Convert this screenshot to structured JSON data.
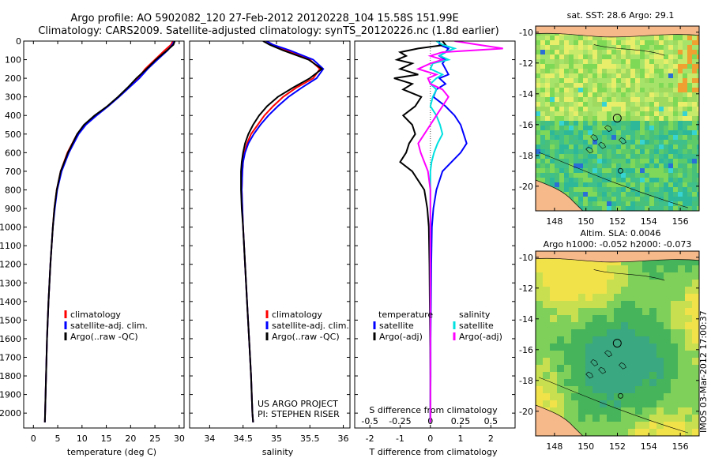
{
  "title": {
    "line1": "Argo profile: AO 5902082_120 27-Feb-2012 20120228_104 15.58S 151.99E",
    "line2": "Climatology: CARS2009. Satellite-adjusted climatology: synTS_20120226.nc (1.8d earlier)"
  },
  "stamp": "IMOS 03-Mar-2012 17:00:37",
  "credit": {
    "line1": "US ARGO PROJECT",
    "line2": "PI: STEPHEN RISER"
  },
  "colors": {
    "climatology": "#ff0000",
    "satellite": "#0000ff",
    "argo": "#000000",
    "sal_satellite": "#00e0e0",
    "sal_argo": "#ff00ff",
    "land": "#f5b98a"
  },
  "chart_data": [
    {
      "type": "line",
      "title": "",
      "xlabel": "temperature (deg C)",
      "ylabel": "",
      "xlim": [
        -2,
        31
      ],
      "ylim": [
        2080,
        0
      ],
      "x_ticks": [
        0,
        5,
        10,
        15,
        20,
        25,
        30
      ],
      "y_ticks": [
        0,
        100,
        200,
        300,
        400,
        500,
        600,
        700,
        800,
        900,
        1000,
        1100,
        1200,
        1300,
        1400,
        1500,
        1600,
        1700,
        1800,
        1900,
        2000
      ],
      "legend": [
        "climatology",
        "satellite-adj. clim.",
        "Argo(..raw -QC)"
      ],
      "depth": [
        0,
        20,
        50,
        100,
        150,
        200,
        250,
        300,
        350,
        400,
        450,
        500,
        600,
        700,
        800,
        900,
        1000,
        1200,
        1400,
        1600,
        1800,
        2000,
        2050
      ],
      "series": [
        {
          "name": "climatology",
          "values": [
            28.7,
            28.3,
            27.0,
            25.0,
            23.0,
            21.5,
            19.5,
            17.5,
            15.3,
            12.8,
            10.5,
            9.0,
            7.0,
            5.6,
            4.8,
            4.3,
            4.0,
            3.5,
            3.1,
            2.8,
            2.6,
            2.4,
            2.35
          ]
        },
        {
          "name": "satellite-adj. clim.",
          "values": [
            29.0,
            28.6,
            27.6,
            25.5,
            23.5,
            21.8,
            19.7,
            17.6,
            15.4,
            13.0,
            10.8,
            9.3,
            7.3,
            5.8,
            4.9,
            4.4,
            4.0,
            3.5,
            3.1,
            2.8,
            2.6,
            2.4,
            2.35
          ]
        },
        {
          "name": "Argo(..raw -QC)",
          "values": [
            29.1,
            28.8,
            27.5,
            25.2,
            23.3,
            21.2,
            19.4,
            17.4,
            15.2,
            12.6,
            10.4,
            9.0,
            7.1,
            5.6,
            4.8,
            4.3,
            4.0,
            3.5,
            3.1,
            2.8,
            2.6,
            2.4,
            2.35
          ]
        }
      ]
    },
    {
      "type": "line",
      "title": "",
      "xlabel": "salinity",
      "ylabel": "",
      "xlim": [
        33.7,
        36.1
      ],
      "ylim": [
        2080,
        0
      ],
      "x_ticks": [
        34,
        34.5,
        35,
        35.5,
        36
      ],
      "legend": [
        "climatology",
        "satellite-adj. clim.",
        "Argo(..raw -QC)"
      ],
      "depth": [
        0,
        20,
        50,
        100,
        150,
        200,
        250,
        300,
        350,
        400,
        450,
        500,
        550,
        600,
        650,
        700,
        800,
        900,
        1000,
        1200,
        1400,
        1600,
        1800,
        2000,
        2050
      ],
      "series": [
        {
          "name": "climatology",
          "values": [
            34.85,
            34.95,
            35.15,
            35.5,
            35.65,
            35.55,
            35.3,
            35.1,
            34.95,
            34.82,
            34.72,
            34.62,
            34.56,
            34.52,
            34.5,
            34.49,
            34.48,
            34.49,
            34.5,
            34.53,
            34.56,
            34.59,
            34.62,
            34.64,
            34.65
          ]
        },
        {
          "name": "satellite-adj. clim.",
          "values": [
            34.85,
            34.95,
            35.2,
            35.55,
            35.7,
            35.6,
            35.38,
            35.18,
            35.02,
            34.88,
            34.76,
            34.66,
            34.58,
            34.53,
            34.5,
            34.49,
            34.48,
            34.49,
            34.5,
            34.53,
            34.56,
            34.59,
            34.62,
            34.64,
            34.65
          ]
        },
        {
          "name": "Argo(..raw -QC)",
          "values": [
            34.8,
            34.9,
            35.1,
            35.48,
            35.68,
            35.5,
            35.25,
            35.02,
            34.86,
            34.74,
            34.65,
            34.58,
            34.53,
            34.5,
            34.48,
            34.47,
            34.47,
            34.48,
            34.5,
            34.53,
            34.56,
            34.59,
            34.62,
            34.64,
            34.65
          ]
        }
      ]
    },
    {
      "type": "line",
      "title": "",
      "xlabel": "T difference from climatology",
      "xlabel_top": "S difference from climatology",
      "ylabel": "",
      "xlim": [
        -2.5,
        2.8
      ],
      "ylim": [
        2080,
        0
      ],
      "x_ticks": [
        -2,
        -1,
        0,
        1,
        2
      ],
      "x_ticks_s": [
        -0.5,
        -0.25,
        0,
        0.25,
        0.5
      ],
      "legend_temperature": [
        "satellite",
        "Argo(-adj)"
      ],
      "legend_salinity": [
        "satellite",
        "Argo(-adj)"
      ],
      "legend_headers": [
        "temperature",
        "salinity"
      ],
      "depth": [
        0,
        20,
        40,
        60,
        80,
        100,
        120,
        150,
        180,
        200,
        230,
        260,
        300,
        350,
        400,
        450,
        500,
        550,
        600,
        650,
        700,
        800,
        900,
        1000,
        1200,
        1400,
        1600,
        1800,
        2000,
        2050
      ],
      "series": [
        {
          "name": "T satellite",
          "values": [
            0.3,
            0.3,
            0.6,
            0.5,
            0.3,
            0.5,
            0.4,
            0.5,
            0.6,
            0.3,
            0.5,
            0.2,
            0.1,
            0.5,
            0.8,
            1.0,
            1.1,
            1.2,
            1.0,
            0.7,
            0.4,
            0.2,
            0.1,
            0.05,
            0.03,
            0.02,
            0.01,
            0.01,
            0.0,
            0.0
          ]
        },
        {
          "name": "T Argo(-adj)",
          "values": [
            0.4,
            0.5,
            -0.4,
            -1.0,
            -0.8,
            -1.1,
            -0.6,
            -1.0,
            -0.4,
            -1.2,
            -0.6,
            -0.9,
            -0.3,
            -0.5,
            -0.9,
            -0.6,
            -0.5,
            -0.7,
            -0.8,
            -1.0,
            -0.6,
            -0.2,
            -0.1,
            -0.05,
            -0.03,
            -0.02,
            -0.01,
            0.0,
            0.0,
            0.0
          ]
        },
        {
          "name": "S satellite",
          "values": [
            0.05,
            0.1,
            0.2,
            0.12,
            0.08,
            0.15,
            0.02,
            0.0,
            0.1,
            0.05,
            0.0,
            0.05,
            0.02,
            0.0,
            0.05,
            0.08,
            0.1,
            0.06,
            0.03,
            0.01,
            0.0,
            0.0,
            0.0,
            0.0,
            0.0,
            0.0,
            0.0,
            0.0,
            0.0,
            0.0
          ]
        },
        {
          "name": "S Argo(-adj)",
          "values": [
            0.2,
            0.4,
            0.6,
            0.1,
            0.0,
            0.1,
            0.0,
            -0.1,
            0.05,
            -0.02,
            0.0,
            0.1,
            0.15,
            0.1,
            0.05,
            0.0,
            -0.05,
            -0.1,
            -0.08,
            -0.05,
            -0.02,
            0.0,
            0.0,
            0.0,
            0.0,
            0.0,
            0.0,
            0.0,
            0.0,
            0.0
          ]
        }
      ]
    },
    {
      "type": "heatmap",
      "title": "sat. SST: 28.6 Argo: 29.1",
      "xlabel": "",
      "ylabel": "",
      "xlim": [
        146.8,
        157.2
      ],
      "ylim": [
        -21.6,
        -9.6
      ],
      "x_ticks": [
        148,
        150,
        152,
        154,
        156
      ],
      "y_ticks": [
        -10,
        -12,
        -14,
        -16,
        -18,
        -20
      ],
      "marker": [
        151.99,
        -15.58
      ]
    },
    {
      "type": "heatmap",
      "title": "Altim. SLA: 0.0046",
      "subtitle": "Argo h1000: -0.052 h2000: -0.073",
      "xlabel": "",
      "ylabel": "",
      "xlim": [
        146.8,
        157.2
      ],
      "ylim": [
        -21.6,
        -9.6
      ],
      "x_ticks": [
        148,
        150,
        152,
        154,
        156
      ],
      "y_ticks": [
        -10,
        -12,
        -14,
        -16,
        -18,
        -20
      ],
      "marker": [
        151.99,
        -15.58
      ]
    }
  ]
}
